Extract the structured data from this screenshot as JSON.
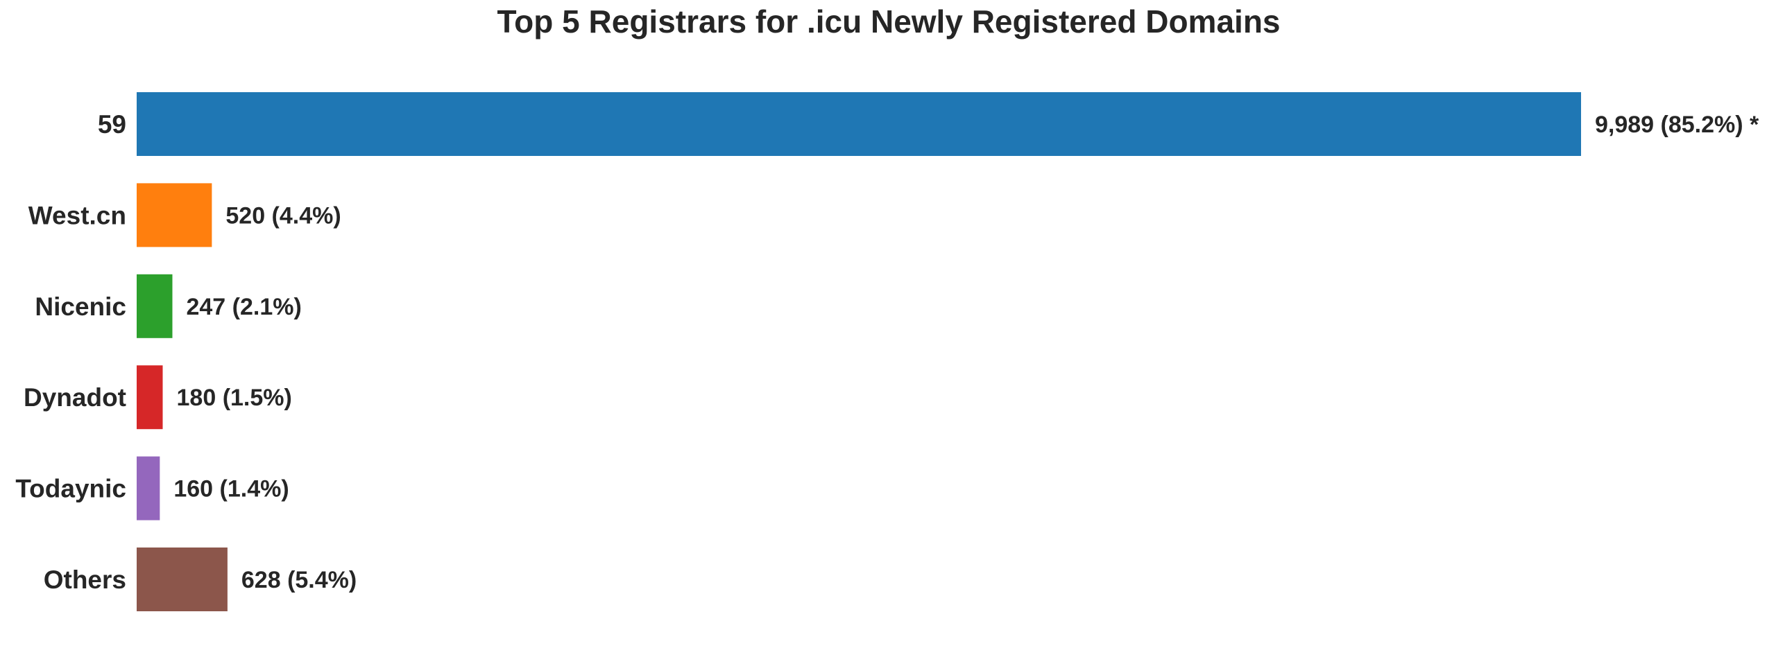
{
  "chart_data": {
    "type": "bar",
    "orientation": "horizontal",
    "title": "Top 5 Registrars for .icu Newly Registered Domains",
    "xlabel": "",
    "ylabel": "",
    "categories": [
      "59",
      "West.cn",
      "Nicenic",
      "Dynadot",
      "Todaynic",
      "Others"
    ],
    "values": [
      9989,
      520,
      247,
      180,
      160,
      628
    ],
    "data_labels": [
      "9,989 (85.2%) *",
      "520 (4.4%)",
      "247 (2.1%)",
      "180 (1.5%)",
      "160 (1.4%)",
      "628 (5.4%)"
    ],
    "colors": [
      "#1f77b4",
      "#ff7f0e",
      "#2ca02c",
      "#d62728",
      "#9467bd",
      "#8c564b"
    ],
    "grid": false,
    "legend": "none"
  }
}
